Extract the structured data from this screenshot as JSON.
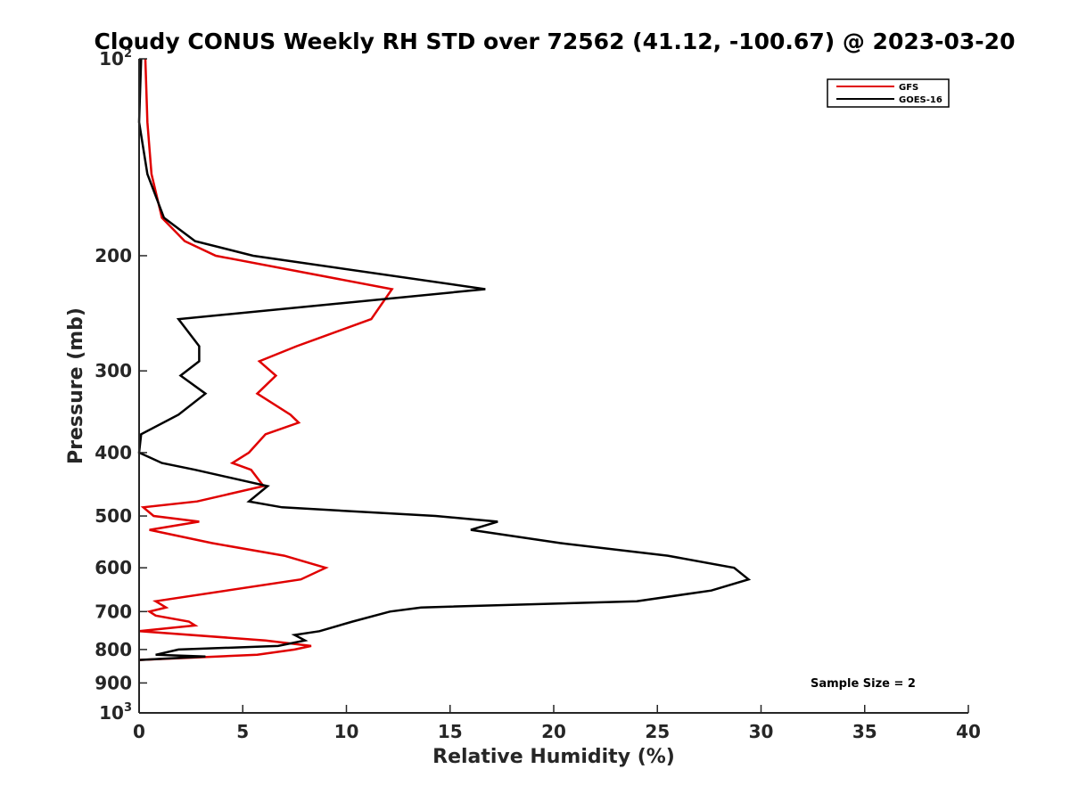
{
  "chart_data": {
    "type": "line",
    "title": "Cloudy CONUS Weekly RH STD over 72562 (41.12, -100.67) @ 2023-03-20",
    "xlabel": "Relative Humidity (%)",
    "ylabel": "Pressure (mb)",
    "xlim": [
      0,
      40
    ],
    "ylim": [
      100,
      1000
    ],
    "y_scale": "log",
    "y_reversed": true,
    "grid": false,
    "legend_position": "top-right",
    "x_ticks": [
      0,
      5,
      10,
      15,
      20,
      25,
      30,
      35,
      40
    ],
    "y_ticks": [
      {
        "value": 100,
        "base": "10",
        "exp": "2"
      },
      {
        "value": 200,
        "label": "200"
      },
      {
        "value": 300,
        "label": "300"
      },
      {
        "value": 400,
        "label": "400"
      },
      {
        "value": 500,
        "label": "500"
      },
      {
        "value": 600,
        "label": "600"
      },
      {
        "value": 700,
        "label": "700"
      },
      {
        "value": 800,
        "label": "800"
      },
      {
        "value": 900,
        "label": "900"
      },
      {
        "value": 1000,
        "base": "10",
        "exp": "3"
      }
    ],
    "annotation": "Sample Size = 2",
    "series": [
      {
        "name": "GFS",
        "color": "#e00000",
        "points": [
          [
            0.3,
            100
          ],
          [
            0.4,
            125
          ],
          [
            0.6,
            150
          ],
          [
            1.1,
            175
          ],
          [
            2.2,
            190
          ],
          [
            3.7,
            200
          ],
          [
            12.2,
            225
          ],
          [
            11.2,
            250
          ],
          [
            7.6,
            275
          ],
          [
            5.8,
            290
          ],
          [
            6.6,
            305
          ],
          [
            5.7,
            325
          ],
          [
            7.3,
            350
          ],
          [
            7.7,
            360
          ],
          [
            6.1,
            375
          ],
          [
            5.3,
            400
          ],
          [
            4.5,
            415
          ],
          [
            5.4,
            425
          ],
          [
            6.0,
            450
          ],
          [
            2.8,
            475
          ],
          [
            0.2,
            485
          ],
          [
            0.7,
            500
          ],
          [
            2.9,
            510
          ],
          [
            0.5,
            525
          ],
          [
            3.5,
            550
          ],
          [
            7.0,
            575
          ],
          [
            9.0,
            600
          ],
          [
            7.8,
            625
          ],
          [
            0.8,
            675
          ],
          [
            1.3,
            690
          ],
          [
            0.5,
            700
          ],
          [
            0.8,
            710
          ],
          [
            2.4,
            725
          ],
          [
            2.7,
            735
          ],
          [
            0.0,
            750
          ],
          [
            6.1,
            775
          ],
          [
            8.3,
            790
          ],
          [
            7.5,
            800
          ],
          [
            5.7,
            815
          ],
          [
            0.0,
            830
          ]
        ]
      },
      {
        "name": "GOES-16",
        "color": "#000000",
        "points": [
          [
            0.1,
            100
          ],
          [
            0.0,
            125
          ],
          [
            0.4,
            150
          ],
          [
            1.2,
            175
          ],
          [
            2.7,
            190
          ],
          [
            5.5,
            200
          ],
          [
            16.7,
            225
          ],
          [
            1.9,
            250
          ],
          [
            2.9,
            275
          ],
          [
            2.9,
            290
          ],
          [
            2.0,
            305
          ],
          [
            3.2,
            325
          ],
          [
            1.9,
            350
          ],
          [
            0.1,
            375
          ],
          [
            0.0,
            400
          ],
          [
            1.1,
            415
          ],
          [
            2.7,
            425
          ],
          [
            6.2,
            450
          ],
          [
            5.3,
            475
          ],
          [
            6.9,
            485
          ],
          [
            14.3,
            500
          ],
          [
            17.3,
            510
          ],
          [
            16.0,
            525
          ],
          [
            20.3,
            550
          ],
          [
            25.5,
            575
          ],
          [
            28.7,
            600
          ],
          [
            29.4,
            625
          ],
          [
            27.6,
            650
          ],
          [
            24.0,
            675
          ],
          [
            13.6,
            690
          ],
          [
            12.1,
            700
          ],
          [
            10.3,
            725
          ],
          [
            8.7,
            750
          ],
          [
            7.5,
            760
          ],
          [
            8.0,
            775
          ],
          [
            6.7,
            790
          ],
          [
            1.9,
            800
          ],
          [
            0.8,
            815
          ],
          [
            3.2,
            820
          ],
          [
            0.0,
            830
          ]
        ]
      }
    ]
  }
}
